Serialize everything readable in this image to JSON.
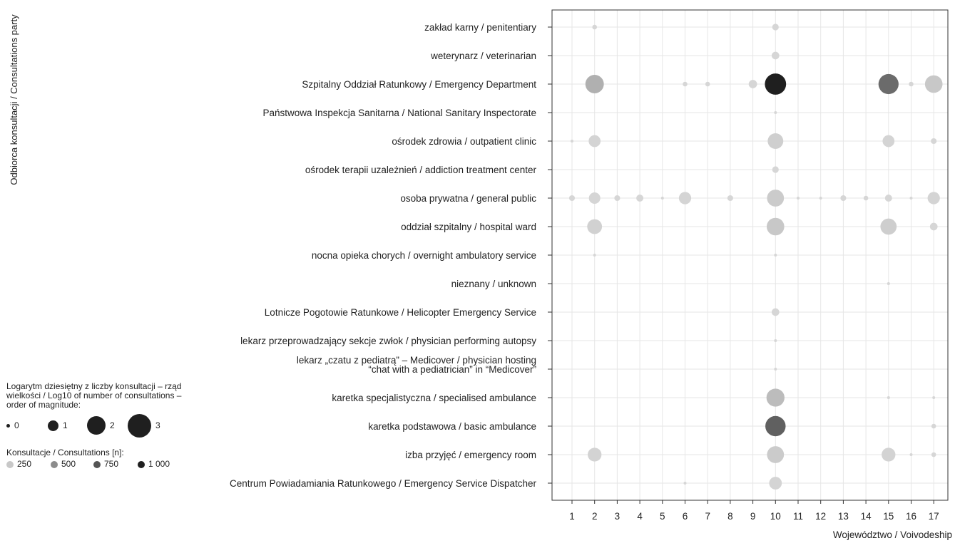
{
  "chart_data": {
    "type": "scatter",
    "ylabel": "Odbiorca konsultacji / Consultations party",
    "xlabel": "Województwo / Voivodeship",
    "x_ticks": [
      "1",
      "2",
      "3",
      "4",
      "5",
      "6",
      "7",
      "8",
      "9",
      "10",
      "11",
      "12",
      "13",
      "14",
      "15",
      "16",
      "17"
    ],
    "categories": [
      "zakład karny / penitentiary",
      "weterynarz / veterinarian",
      "Szpitalny Oddział Ratunkowy / Emergency Department",
      "Państwowa Inspekcja Sanitarna / National Sanitary Inspectorate",
      "ośrodek zdrowia / outpatient clinic",
      "ośrodek terapii uzależnień / addiction treatment center",
      "osoba prywatna / general public",
      "oddział szpitalny / hospital ward",
      "nocna opieka chorych / overnight ambulatory service",
      "nieznany / unknown",
      "Lotnicze Pogotowie Ratunkowe / Helicopter Emergency Service",
      "lekarz przeprowadzający sekcje zwłok / physician performing autopsy",
      "lekarz „czatu z pediatrą” – Medicover / physician hosting\n“chat with a pediatrician” in “Medicover”",
      "karetka specjalistyczna / specialised ambulance",
      "karetka podstawowa / basic ambulance",
      "izba przyjęć / emergency room",
      "Centrum Powiadamiania Ratunkowego / Emergency Service Dispatcher"
    ],
    "grid": true,
    "points": [
      {
        "category": "zakład karny / penitentiary",
        "x": 2,
        "n": 2
      },
      {
        "category": "zakład karny / penitentiary",
        "x": 10,
        "n": 4
      },
      {
        "category": "weterynarz / veterinarian",
        "x": 10,
        "n": 6
      },
      {
        "category": "Szpitalny Oddział Ratunkowy / Emergency Department",
        "x": 2,
        "n": 350
      },
      {
        "category": "Szpitalny Oddział Ratunkowy / Emergency Department",
        "x": 6,
        "n": 2
      },
      {
        "category": "Szpitalny Oddział Ratunkowy / Emergency Department",
        "x": 7,
        "n": 2
      },
      {
        "category": "Szpitalny Oddział Ratunkowy / Emergency Department",
        "x": 9,
        "n": 8
      },
      {
        "category": "Szpitalny Oddział Ratunkowy / Emergency Department",
        "x": 10,
        "n": 1000
      },
      {
        "category": "Szpitalny Oddział Ratunkowy / Emergency Department",
        "x": 15,
        "n": 650
      },
      {
        "category": "Szpitalny Oddział Ratunkowy / Emergency Department",
        "x": 16,
        "n": 2
      },
      {
        "category": "Szpitalny Oddział Ratunkowy / Emergency Department",
        "x": 17,
        "n": 250
      },
      {
        "category": "Państwowa Inspekcja Sanitarna / National Sanitary Inspectorate",
        "x": 10,
        "n": 1
      },
      {
        "category": "ośrodek zdrowia / outpatient clinic",
        "x": 1,
        "n": 1
      },
      {
        "category": "ośrodek zdrowia / outpatient clinic",
        "x": 2,
        "n": 30
      },
      {
        "category": "ośrodek zdrowia / outpatient clinic",
        "x": 10,
        "n": 120
      },
      {
        "category": "ośrodek zdrowia / outpatient clinic",
        "x": 15,
        "n": 30
      },
      {
        "category": "ośrodek zdrowia / outpatient clinic",
        "x": 17,
        "n": 3
      },
      {
        "category": "ośrodek terapii uzależnień / addiction treatment center",
        "x": 10,
        "n": 4
      },
      {
        "category": "osoba prywatna / general public",
        "x": 1,
        "n": 3
      },
      {
        "category": "osoba prywatna / general public",
        "x": 2,
        "n": 25
      },
      {
        "category": "osoba prywatna / general public",
        "x": 3,
        "n": 3
      },
      {
        "category": "osoba prywatna / general public",
        "x": 4,
        "n": 5
      },
      {
        "category": "osoba prywatna / general public",
        "x": 5,
        "n": 1
      },
      {
        "category": "osoba prywatna / general public",
        "x": 6,
        "n": 35
      },
      {
        "category": "osoba prywatna / general public",
        "x": 8,
        "n": 3
      },
      {
        "category": "osoba prywatna / general public",
        "x": 10,
        "n": 200
      },
      {
        "category": "osoba prywatna / general public",
        "x": 11,
        "n": 1
      },
      {
        "category": "osoba prywatna / general public",
        "x": 12,
        "n": 1
      },
      {
        "category": "osoba prywatna / general public",
        "x": 13,
        "n": 3
      },
      {
        "category": "osoba prywatna / general public",
        "x": 14,
        "n": 2
      },
      {
        "category": "osoba prywatna / general public",
        "x": 15,
        "n": 5
      },
      {
        "category": "osoba prywatna / general public",
        "x": 16,
        "n": 1
      },
      {
        "category": "osoba prywatna / general public",
        "x": 17,
        "n": 35
      },
      {
        "category": "oddział szpitalny / hospital ward",
        "x": 2,
        "n": 90
      },
      {
        "category": "oddział szpitalny / hospital ward",
        "x": 10,
        "n": 250
      },
      {
        "category": "oddział szpitalny / hospital ward",
        "x": 15,
        "n": 150
      },
      {
        "category": "oddział szpitalny / hospital ward",
        "x": 17,
        "n": 6
      },
      {
        "category": "nocna opieka chorych / overnight ambulatory service",
        "x": 2,
        "n": 1
      },
      {
        "category": "nocna opieka chorych / overnight ambulatory service",
        "x": 10,
        "n": 1
      },
      {
        "category": "nieznany / unknown",
        "x": 15,
        "n": 1
      },
      {
        "category": "Lotnicze Pogotowie Ratunkowe / Helicopter Emergency Service",
        "x": 10,
        "n": 6
      },
      {
        "category": "lekarz przeprowadzający sekcje zwłok / physician performing autopsy",
        "x": 10,
        "n": 1
      },
      {
        "category": "lekarz „czatu z pediatrą” – Medicover / physician hosting\n“chat with a pediatrician” in “Medicover”",
        "x": 10,
        "n": 1
      },
      {
        "category": "karetka specjalistyczna / specialised ambulance",
        "x": 10,
        "n": 300
      },
      {
        "category": "karetka specjalistyczna / specialised ambulance",
        "x": 15,
        "n": 1
      },
      {
        "category": "karetka specjalistyczna / specialised ambulance",
        "x": 17,
        "n": 1
      },
      {
        "category": "karetka podstawowa / basic ambulance",
        "x": 10,
        "n": 700
      },
      {
        "category": "karetka podstawowa / basic ambulance",
        "x": 17,
        "n": 2
      },
      {
        "category": "izba przyjęć / emergency room",
        "x": 2,
        "n": 60
      },
      {
        "category": "izba przyjęć / emergency room",
        "x": 10,
        "n": 200
      },
      {
        "category": "izba przyjęć / emergency room",
        "x": 15,
        "n": 60
      },
      {
        "category": "izba przyjęć / emergency room",
        "x": 16,
        "n": 1
      },
      {
        "category": "izba przyjęć / emergency room",
        "x": 17,
        "n": 2
      },
      {
        "category": "Centrum Powiadamiania Ratunkowego / Emergency Service Dispatcher",
        "x": 6,
        "n": 1
      },
      {
        "category": "Centrum Powiadamiania Ratunkowego / Emergency Service Dispatcher",
        "x": 10,
        "n": 40
      }
    ],
    "legend_size": {
      "title": "Logarytm dziesiętny z liczby konsultacji – rząd wielkości / Log10 of number of consultations – order of magnitude:",
      "entries": [
        "0",
        "1",
        "2",
        "3"
      ]
    },
    "legend_color": {
      "title": "Konsultacje / Consultations [n]:",
      "entries": [
        {
          "label": "250",
          "color": "#c8c8c8"
        },
        {
          "label": "500",
          "color": "#8c8c8c"
        },
        {
          "label": "750",
          "color": "#555555"
        },
        {
          "label": "1 000",
          "color": "#1f1f1f"
        }
      ]
    },
    "legend_position": "left"
  }
}
